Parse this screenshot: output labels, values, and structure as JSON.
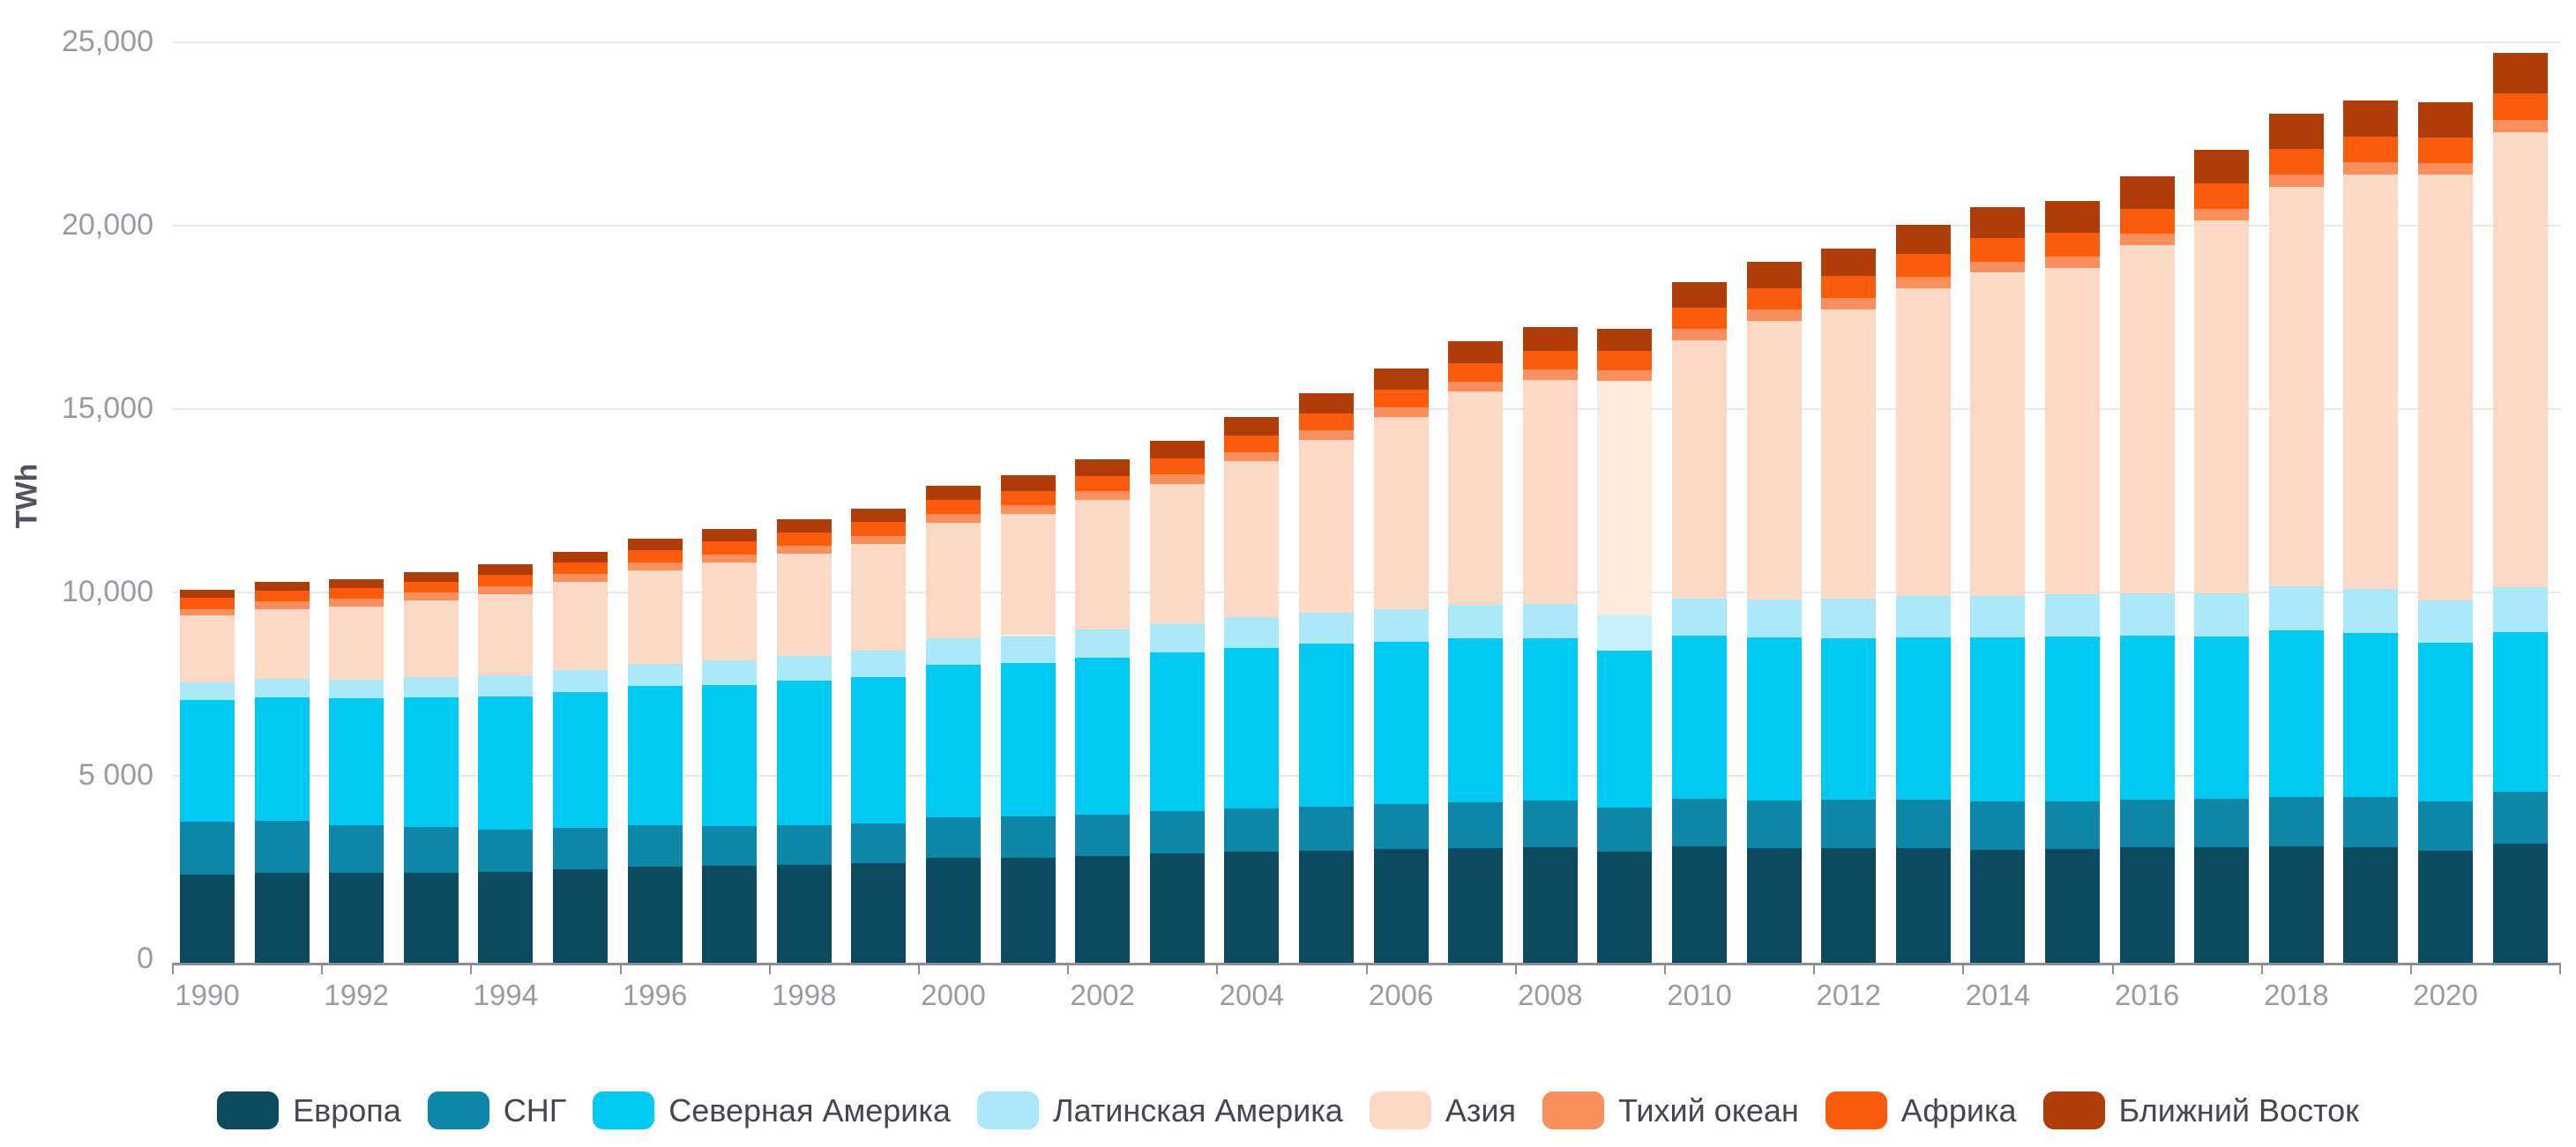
{
  "chart_data": {
    "type": "bar",
    "stacking": "stacked",
    "title": "",
    "unit_label": "TWh",
    "grid": true,
    "legend_position": "bottom",
    "ylim": [
      0,
      25290
    ],
    "y_ticks": [
      {
        "value": 0,
        "label": "0"
      },
      {
        "value": 5000,
        "label": "5 000"
      },
      {
        "value": 10000,
        "label": "10,000"
      },
      {
        "value": 15000,
        "label": "15,000"
      },
      {
        "value": 20000,
        "label": "20,000"
      },
      {
        "value": 25000,
        "label": "25,000"
      }
    ],
    "years": [
      1990,
      1991,
      1992,
      1993,
      1994,
      1995,
      1996,
      1997,
      1998,
      1999,
      2000,
      2001,
      2002,
      2003,
      2004,
      2005,
      2006,
      2007,
      2008,
      2009,
      2010,
      2011,
      2012,
      2013,
      2014,
      2015,
      2016,
      2017,
      2018,
      2019,
      2020,
      2021
    ],
    "x_tick_labels": [
      "1990",
      "1992",
      "1994",
      "1996",
      "1998",
      "2000",
      "2002",
      "2004",
      "2006",
      "2008",
      "2010",
      "2012",
      "2014",
      "2016",
      "2018",
      "2020"
    ],
    "highlighted_year": 2009,
    "series": [
      {
        "name": "Европа",
        "color": "#0b4a5f",
        "values": [
          2400,
          2460,
          2440,
          2460,
          2480,
          2540,
          2620,
          2640,
          2680,
          2720,
          2850,
          2870,
          2900,
          2980,
          3030,
          3060,
          3100,
          3130,
          3150,
          3020,
          3180,
          3130,
          3130,
          3130,
          3080,
          3100,
          3140,
          3160,
          3170,
          3150,
          3060,
          3240
        ]
      },
      {
        "name": "СНГ",
        "color": "#0e86a8",
        "values": [
          1450,
          1400,
          1320,
          1240,
          1150,
          1130,
          1120,
          1080,
          1070,
          1080,
          1120,
          1130,
          1140,
          1160,
          1180,
          1200,
          1220,
          1240,
          1270,
          1220,
          1290,
          1300,
          1310,
          1320,
          1310,
          1290,
          1300,
          1320,
          1360,
          1360,
          1340,
          1420
        ]
      },
      {
        "name": "Северная Америка",
        "color": "#00c9f2",
        "values": [
          3310,
          3380,
          3440,
          3540,
          3630,
          3710,
          3800,
          3860,
          3940,
          4000,
          4160,
          4180,
          4280,
          4320,
          4380,
          4430,
          4420,
          4470,
          4420,
          4270,
          4450,
          4430,
          4400,
          4430,
          4480,
          4510,
          4470,
          4420,
          4540,
          4480,
          4320,
          4350
        ]
      },
      {
        "name": "Латинская Америка",
        "color": "#abe8f9",
        "highlight_color": "#c8f0fc",
        "values": [
          480,
          500,
          520,
          545,
          570,
          595,
          620,
          655,
          680,
          700,
          720,
          750,
          770,
          800,
          830,
          860,
          890,
          930,
          950,
          950,
          1010,
          1040,
          1080,
          1120,
          1140,
          1150,
          1160,
          1180,
          1190,
          1200,
          1160,
          1230
        ]
      },
      {
        "name": "Азия",
        "color": "#fcd9c4",
        "highlight_color": "#fdeada",
        "values": [
          1820,
          1910,
          2000,
          2100,
          2230,
          2400,
          2540,
          2680,
          2780,
          2910,
          3150,
          3300,
          3530,
          3800,
          4250,
          4700,
          5250,
          5800,
          6100,
          6400,
          7050,
          7600,
          7900,
          8400,
          8800,
          8900,
          9500,
          10150,
          10900,
          11300,
          11600,
          12400
        ]
      },
      {
        "name": "Тихий океан",
        "color": "#fa8f5e",
        "values": [
          190,
          195,
          200,
          205,
          210,
          215,
          220,
          225,
          230,
          235,
          240,
          245,
          250,
          255,
          260,
          265,
          270,
          275,
          280,
          285,
          310,
          305,
          310,
          310,
          310,
          315,
          320,
          325,
          330,
          330,
          325,
          350
        ]
      },
      {
        "name": "Африка",
        "color": "#f95c0c",
        "values": [
          290,
          295,
          295,
          300,
          310,
          320,
          330,
          340,
          355,
          365,
          380,
          395,
          410,
          425,
          445,
          460,
          480,
          500,
          520,
          540,
          570,
          590,
          600,
          620,
          640,
          650,
          670,
          690,
          700,
          710,
          700,
          720
        ]
      },
      {
        "name": "Ближний Восток",
        "color": "#b03c08",
        "values": [
          220,
          235,
          250,
          265,
          285,
          300,
          315,
          335,
          355,
          375,
          395,
          420,
          450,
          480,
          510,
          545,
          575,
          605,
          635,
          600,
          690,
          720,
          750,
          790,
          830,
          860,
          890,
          920,
          950,
          980,
          950,
          1100
        ]
      }
    ]
  },
  "colors": {
    "background": "#ffffff",
    "gridline": "#e5e9f3",
    "axis_line": "#8d8d95",
    "axis_text": "#9a9aa2",
    "legend_text": "#464650",
    "unit_text": "#53535e"
  }
}
